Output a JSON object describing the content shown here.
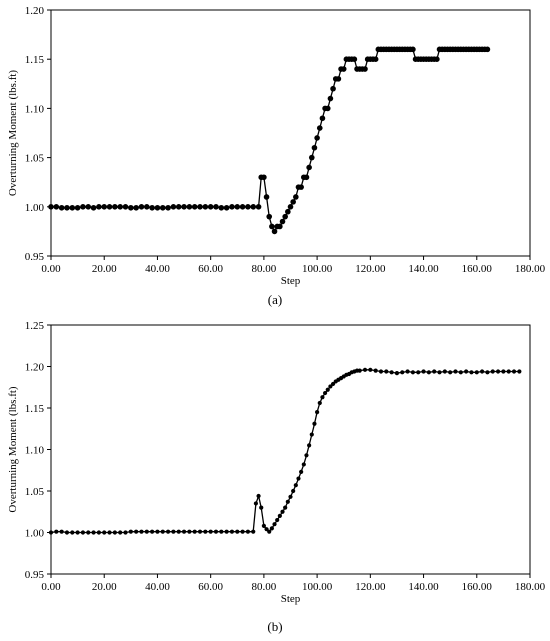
{
  "figures": [
    {
      "caption": "(a)",
      "chart_data": {
        "type": "line",
        "title": "",
        "xlabel": "Step",
        "ylabel": "Overturning Moment (lbs.ft)",
        "xlim": [
          0,
          180
        ],
        "ylim": [
          0.95,
          1.2
        ],
        "x_ticks": [
          "0.00",
          "20.00",
          "40.00",
          "60.00",
          "80.00",
          "100.00",
          "120.00",
          "140.00",
          "160.00",
          "180.00"
        ],
        "y_ticks": [
          "0.95",
          "1.00",
          "1.05",
          "1.10",
          "1.15",
          "1.20"
        ],
        "series": [
          {
            "points": [
              [
                0,
                1.0
              ],
              [
                2,
                1.0
              ],
              [
                4,
                0.999
              ],
              [
                6,
                0.999
              ],
              [
                8,
                0.999
              ],
              [
                10,
                0.999
              ],
              [
                12,
                1.0
              ],
              [
                14,
                1.0
              ],
              [
                16,
                0.999
              ],
              [
                18,
                1.0
              ],
              [
                20,
                1.0
              ],
              [
                22,
                1.0
              ],
              [
                24,
                1.0
              ],
              [
                26,
                1.0
              ],
              [
                28,
                1.0
              ],
              [
                30,
                0.999
              ],
              [
                32,
                0.999
              ],
              [
                34,
                1.0
              ],
              [
                36,
                1.0
              ],
              [
                38,
                0.999
              ],
              [
                40,
                0.999
              ],
              [
                42,
                0.999
              ],
              [
                44,
                0.999
              ],
              [
                46,
                1.0
              ],
              [
                48,
                1.0
              ],
              [
                50,
                1.0
              ],
              [
                52,
                1.0
              ],
              [
                54,
                1.0
              ],
              [
                56,
                1.0
              ],
              [
                58,
                1.0
              ],
              [
                60,
                1.0
              ],
              [
                62,
                1.0
              ],
              [
                64,
                0.999
              ],
              [
                66,
                0.999
              ],
              [
                68,
                1.0
              ],
              [
                70,
                1.0
              ],
              [
                72,
                1.0
              ],
              [
                74,
                1.0
              ],
              [
                76,
                1.0
              ],
              [
                78,
                1.0
              ],
              [
                79,
                1.03
              ],
              [
                80,
                1.03
              ],
              [
                81,
                1.01
              ],
              [
                82,
                0.99
              ],
              [
                83,
                0.98
              ],
              [
                84,
                0.975
              ],
              [
                85,
                0.98
              ],
              [
                86,
                0.98
              ],
              [
                87,
                0.985
              ],
              [
                88,
                0.99
              ],
              [
                89,
                0.995
              ],
              [
                90,
                1.0
              ],
              [
                91,
                1.005
              ],
              [
                92,
                1.01
              ],
              [
                93,
                1.02
              ],
              [
                94,
                1.02
              ],
              [
                95,
                1.03
              ],
              [
                96,
                1.03
              ],
              [
                97,
                1.04
              ],
              [
                98,
                1.05
              ],
              [
                99,
                1.06
              ],
              [
                100,
                1.07
              ],
              [
                101,
                1.08
              ],
              [
                102,
                1.09
              ],
              [
                103,
                1.1
              ],
              [
                104,
                1.1
              ],
              [
                105,
                1.11
              ],
              [
                106,
                1.12
              ],
              [
                107,
                1.13
              ],
              [
                108,
                1.13
              ],
              [
                109,
                1.14
              ],
              [
                110,
                1.14
              ],
              [
                111,
                1.15
              ],
              [
                112,
                1.15
              ],
              [
                113,
                1.15
              ],
              [
                114,
                1.15
              ],
              [
                115,
                1.14
              ],
              [
                116,
                1.14
              ],
              [
                117,
                1.14
              ],
              [
                118,
                1.14
              ],
              [
                119,
                1.15
              ],
              [
                120,
                1.15
              ],
              [
                121,
                1.15
              ],
              [
                122,
                1.15
              ],
              [
                123,
                1.16
              ],
              [
                124,
                1.16
              ],
              [
                125,
                1.16
              ],
              [
                126,
                1.16
              ],
              [
                127,
                1.16
              ],
              [
                128,
                1.16
              ],
              [
                129,
                1.16
              ],
              [
                130,
                1.16
              ],
              [
                131,
                1.16
              ],
              [
                132,
                1.16
              ],
              [
                133,
                1.16
              ],
              [
                134,
                1.16
              ],
              [
                135,
                1.16
              ],
              [
                136,
                1.16
              ],
              [
                137,
                1.15
              ],
              [
                138,
                1.15
              ],
              [
                139,
                1.15
              ],
              [
                140,
                1.15
              ],
              [
                141,
                1.15
              ],
              [
                142,
                1.15
              ],
              [
                143,
                1.15
              ],
              [
                144,
                1.15
              ],
              [
                145,
                1.15
              ],
              [
                146,
                1.16
              ],
              [
                147,
                1.16
              ],
              [
                148,
                1.16
              ],
              [
                149,
                1.16
              ],
              [
                150,
                1.16
              ],
              [
                151,
                1.16
              ],
              [
                152,
                1.16
              ],
              [
                153,
                1.16
              ],
              [
                154,
                1.16
              ],
              [
                155,
                1.16
              ],
              [
                156,
                1.16
              ],
              [
                157,
                1.16
              ],
              [
                158,
                1.16
              ],
              [
                159,
                1.16
              ],
              [
                160,
                1.16
              ],
              [
                161,
                1.16
              ],
              [
                162,
                1.16
              ],
              [
                163,
                1.16
              ],
              [
                164,
                1.16
              ]
            ]
          }
        ]
      }
    },
    {
      "caption": "(b)",
      "chart_data": {
        "type": "line",
        "title": "",
        "xlabel": "Step",
        "ylabel": "Overturning Moment (lbs.ft)",
        "xlim": [
          0,
          180
        ],
        "ylim": [
          0.95,
          1.25
        ],
        "x_ticks": [
          "0.00",
          "20.00",
          "40.00",
          "60.00",
          "80.00",
          "100.00",
          "120.00",
          "140.00",
          "160.00",
          "180.00"
        ],
        "y_ticks": [
          "0.95",
          "1.00",
          "1.05",
          "1.10",
          "1.15",
          "1.20",
          "1.25"
        ],
        "series": [
          {
            "points": [
              [
                0,
                1.0
              ],
              [
                2,
                1.001
              ],
              [
                4,
                1.001
              ],
              [
                6,
                1.0
              ],
              [
                8,
                1.0
              ],
              [
                10,
                1.0
              ],
              [
                12,
                1.0
              ],
              [
                14,
                1.0
              ],
              [
                16,
                1.0
              ],
              [
                18,
                1.0
              ],
              [
                20,
                1.0
              ],
              [
                22,
                1.0
              ],
              [
                24,
                1.0
              ],
              [
                26,
                1.0
              ],
              [
                28,
                1.0
              ],
              [
                30,
                1.001
              ],
              [
                32,
                1.001
              ],
              [
                34,
                1.001
              ],
              [
                36,
                1.001
              ],
              [
                38,
                1.001
              ],
              [
                40,
                1.001
              ],
              [
                42,
                1.001
              ],
              [
                44,
                1.001
              ],
              [
                46,
                1.001
              ],
              [
                48,
                1.001
              ],
              [
                50,
                1.001
              ],
              [
                52,
                1.001
              ],
              [
                54,
                1.001
              ],
              [
                56,
                1.001
              ],
              [
                58,
                1.001
              ],
              [
                60,
                1.001
              ],
              [
                62,
                1.001
              ],
              [
                64,
                1.001
              ],
              [
                66,
                1.001
              ],
              [
                68,
                1.001
              ],
              [
                70,
                1.001
              ],
              [
                72,
                1.001
              ],
              [
                74,
                1.001
              ],
              [
                76,
                1.001
              ],
              [
                77,
                1.035
              ],
              [
                78,
                1.044
              ],
              [
                79,
                1.03
              ],
              [
                80,
                1.008
              ],
              [
                81,
                1.004
              ],
              [
                82,
                1.001
              ],
              [
                83,
                1.005
              ],
              [
                84,
                1.01
              ],
              [
                85,
                1.015
              ],
              [
                86,
                1.02
              ],
              [
                87,
                1.025
              ],
              [
                88,
                1.03
              ],
              [
                89,
                1.037
              ],
              [
                90,
                1.043
              ],
              [
                91,
                1.05
              ],
              [
                92,
                1.057
              ],
              [
                93,
                1.065
              ],
              [
                94,
                1.073
              ],
              [
                95,
                1.082
              ],
              [
                96,
                1.093
              ],
              [
                97,
                1.105
              ],
              [
                98,
                1.118
              ],
              [
                99,
                1.131
              ],
              [
                100,
                1.145
              ],
              [
                101,
                1.156
              ],
              [
                102,
                1.163
              ],
              [
                103,
                1.168
              ],
              [
                104,
                1.172
              ],
              [
                105,
                1.176
              ],
              [
                106,
                1.179
              ],
              [
                107,
                1.182
              ],
              [
                108,
                1.184
              ],
              [
                109,
                1.186
              ],
              [
                110,
                1.188
              ],
              [
                111,
                1.19
              ],
              [
                112,
                1.191
              ],
              [
                113,
                1.193
              ],
              [
                114,
                1.194
              ],
              [
                115,
                1.195
              ],
              [
                116,
                1.195
              ],
              [
                118,
                1.196
              ],
              [
                120,
                1.196
              ],
              [
                122,
                1.195
              ],
              [
                124,
                1.194
              ],
              [
                126,
                1.194
              ],
              [
                128,
                1.193
              ],
              [
                130,
                1.192
              ],
              [
                132,
                1.193
              ],
              [
                134,
                1.194
              ],
              [
                136,
                1.193
              ],
              [
                138,
                1.193
              ],
              [
                140,
                1.194
              ],
              [
                142,
                1.193
              ],
              [
                144,
                1.194
              ],
              [
                146,
                1.193
              ],
              [
                148,
                1.194
              ],
              [
                150,
                1.193
              ],
              [
                152,
                1.194
              ],
              [
                154,
                1.193
              ],
              [
                156,
                1.194
              ],
              [
                158,
                1.193
              ],
              [
                160,
                1.193
              ],
              [
                162,
                1.194
              ],
              [
                164,
                1.193
              ],
              [
                166,
                1.194
              ],
              [
                168,
                1.194
              ],
              [
                170,
                1.194
              ],
              [
                172,
                1.194
              ],
              [
                174,
                1.194
              ],
              [
                176,
                1.194
              ]
            ]
          }
        ]
      }
    }
  ],
  "colors": {
    "line": "#000000",
    "marker": "#000000",
    "frame": "#000000",
    "background": "#ffffff"
  }
}
